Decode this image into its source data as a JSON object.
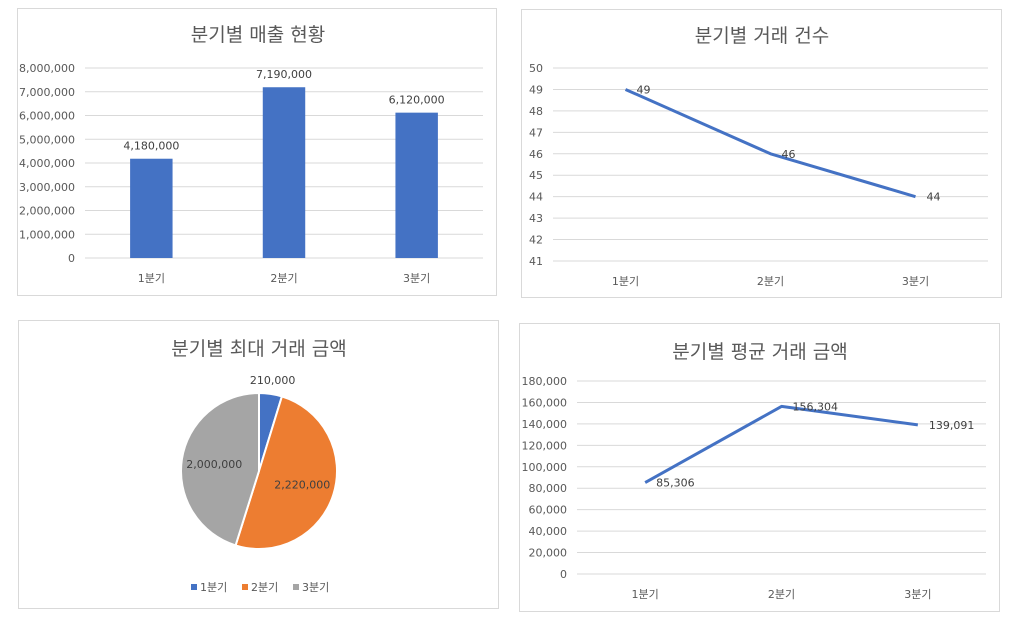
{
  "colors": {
    "blue": "#4472c4",
    "orange": "#ed7d31",
    "gray": "#a5a5a5"
  },
  "chart_data": [
    {
      "type": "bar",
      "title": "분기별 매출 현황",
      "categories": [
        "1분기",
        "2분기",
        "3분기"
      ],
      "values": [
        4180000,
        7190000,
        6120000
      ],
      "value_labels": [
        "4,180,000",
        "7,190,000",
        "6,120,000"
      ],
      "ylim": [
        0,
        8000000
      ],
      "yticks": [
        "0",
        "1,000,000",
        "2,000,000",
        "3,000,000",
        "4,000,000",
        "5,000,000",
        "6,000,000",
        "7,000,000",
        "8,000,000"
      ],
      "grid": true
    },
    {
      "type": "line",
      "title": "분기별 거래 건수",
      "categories": [
        "1분기",
        "2분기",
        "3분기"
      ],
      "values": [
        49,
        46,
        44
      ],
      "value_labels": [
        "49",
        "46",
        "44"
      ],
      "ylim": [
        41,
        50
      ],
      "yticks": [
        "41",
        "42",
        "43",
        "44",
        "45",
        "46",
        "47",
        "48",
        "49",
        "50"
      ],
      "grid": true
    },
    {
      "type": "pie",
      "title": "분기별 최대 거래 금액",
      "categories": [
        "1분기",
        "2분기",
        "3분기"
      ],
      "values": [
        210000,
        2220000,
        2000000
      ],
      "value_labels": [
        "210,000",
        "2,220,000",
        "2,000,000"
      ],
      "legend": "bottom"
    },
    {
      "type": "line",
      "title": "분기별 평균 거래 금액",
      "categories": [
        "1분기",
        "2분기",
        "3분기"
      ],
      "values": [
        85306,
        156304,
        139091
      ],
      "value_labels": [
        "85,306",
        "156,304",
        "139,091"
      ],
      "ylim": [
        0,
        180000
      ],
      "yticks": [
        "0",
        "20,000",
        "40,000",
        "60,000",
        "80,000",
        "100,000",
        "120,000",
        "140,000",
        "160,000",
        "180,000"
      ],
      "grid": true
    }
  ]
}
